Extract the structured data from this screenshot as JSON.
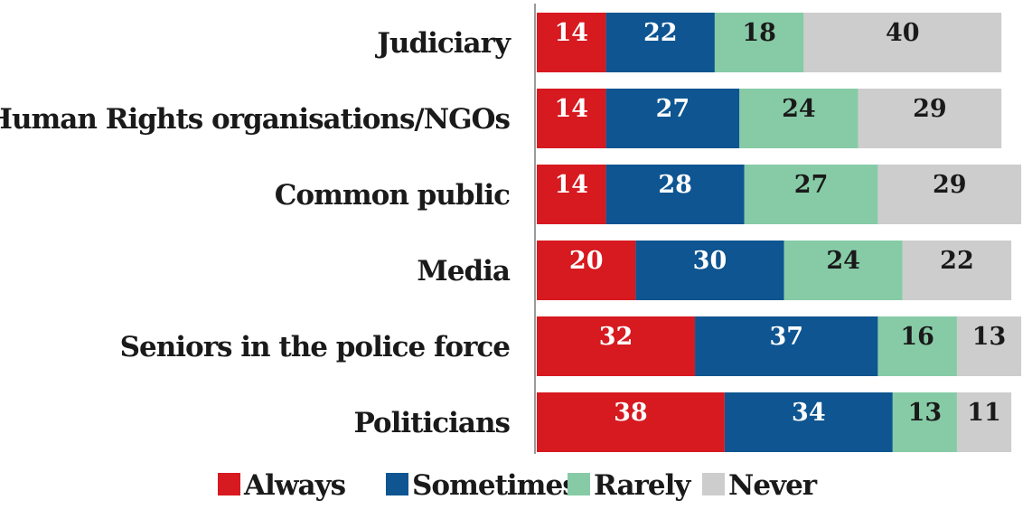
{
  "chart_data": {
    "type": "bar",
    "orientation": "horizontal",
    "stacked": true,
    "categories": [
      "Judiciary",
      "Human Rights organisations/NGOs",
      "Common public",
      "Media",
      "Seniors in the police force",
      "Politicians"
    ],
    "series": [
      {
        "name": "Always",
        "color": "#d71920",
        "values": [
          14,
          14,
          14,
          20,
          32,
          38
        ]
      },
      {
        "name": "Sometimes",
        "color": "#0e5591",
        "values": [
          22,
          27,
          28,
          30,
          37,
          34
        ]
      },
      {
        "name": "Rarely",
        "color": "#86cba6",
        "values": [
          18,
          24,
          27,
          24,
          16,
          13
        ]
      },
      {
        "name": "Never",
        "color": "#cdcdcd",
        "values": [
          40,
          29,
          29,
          22,
          13,
          11
        ]
      }
    ],
    "value_label_colors": [
      "#ffffff",
      "#ffffff",
      "#1a1a1a",
      "#1a1a1a"
    ],
    "legend_position": "bottom",
    "grid": false
  }
}
